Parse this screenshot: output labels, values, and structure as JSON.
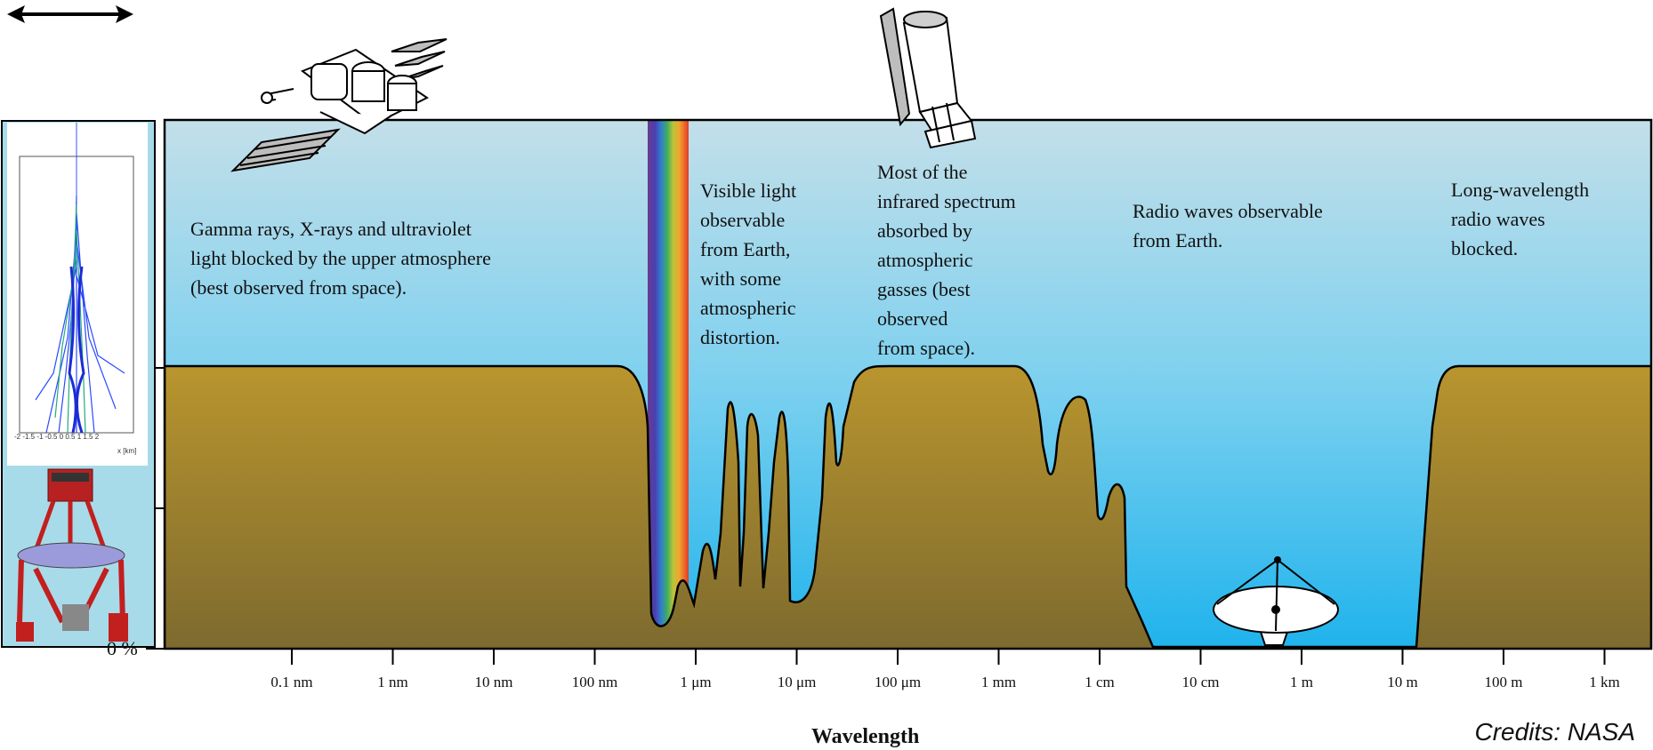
{
  "descriptions": {
    "gamma": "Gamma rays, X-rays and ultraviolet\nlight blocked by the upper atmosphere\n(best observed from space).",
    "visible": "Visible light\nobservable\nfrom Earth,\nwith some\natmospheric\ndistortion.",
    "infrared": "Most of the\ninfrared spectrum\nabsorbed by\natmospheric\ngasses (best\nobserved\nfrom space).",
    "radio": "Radio waves observable\nfrom Earth.",
    "long_radio": "Long-wavelength\nradio waves\nblocked."
  },
  "x_ticks": [
    "0.1 nm",
    "1 nm",
    "10 nm",
    "100 nm",
    "1 μm",
    "10 μm",
    "100 μm",
    "1 mm",
    "1 cm",
    "10 cm",
    "1 m",
    "10 m",
    "100 m",
    "1 km"
  ],
  "x_axis_title": "Wavelength",
  "y_axis_label": "0 %",
  "credits": "Credits: NASA",
  "colors": {
    "sky_top": "#c3dfe9",
    "sky_bottom": "#1fb3ec",
    "ground_top": "#b9952e",
    "ground_bottom": "#7d6a2e",
    "left_panel": "#a8dbe9",
    "telescope_red": "#cc1f1f"
  },
  "icons": [
    "double-arrow-icon",
    "satellite-icon",
    "space-telescope-icon",
    "radio-dish-icon",
    "cherenkov-telescope-icon",
    "air-shower-plot"
  ]
}
